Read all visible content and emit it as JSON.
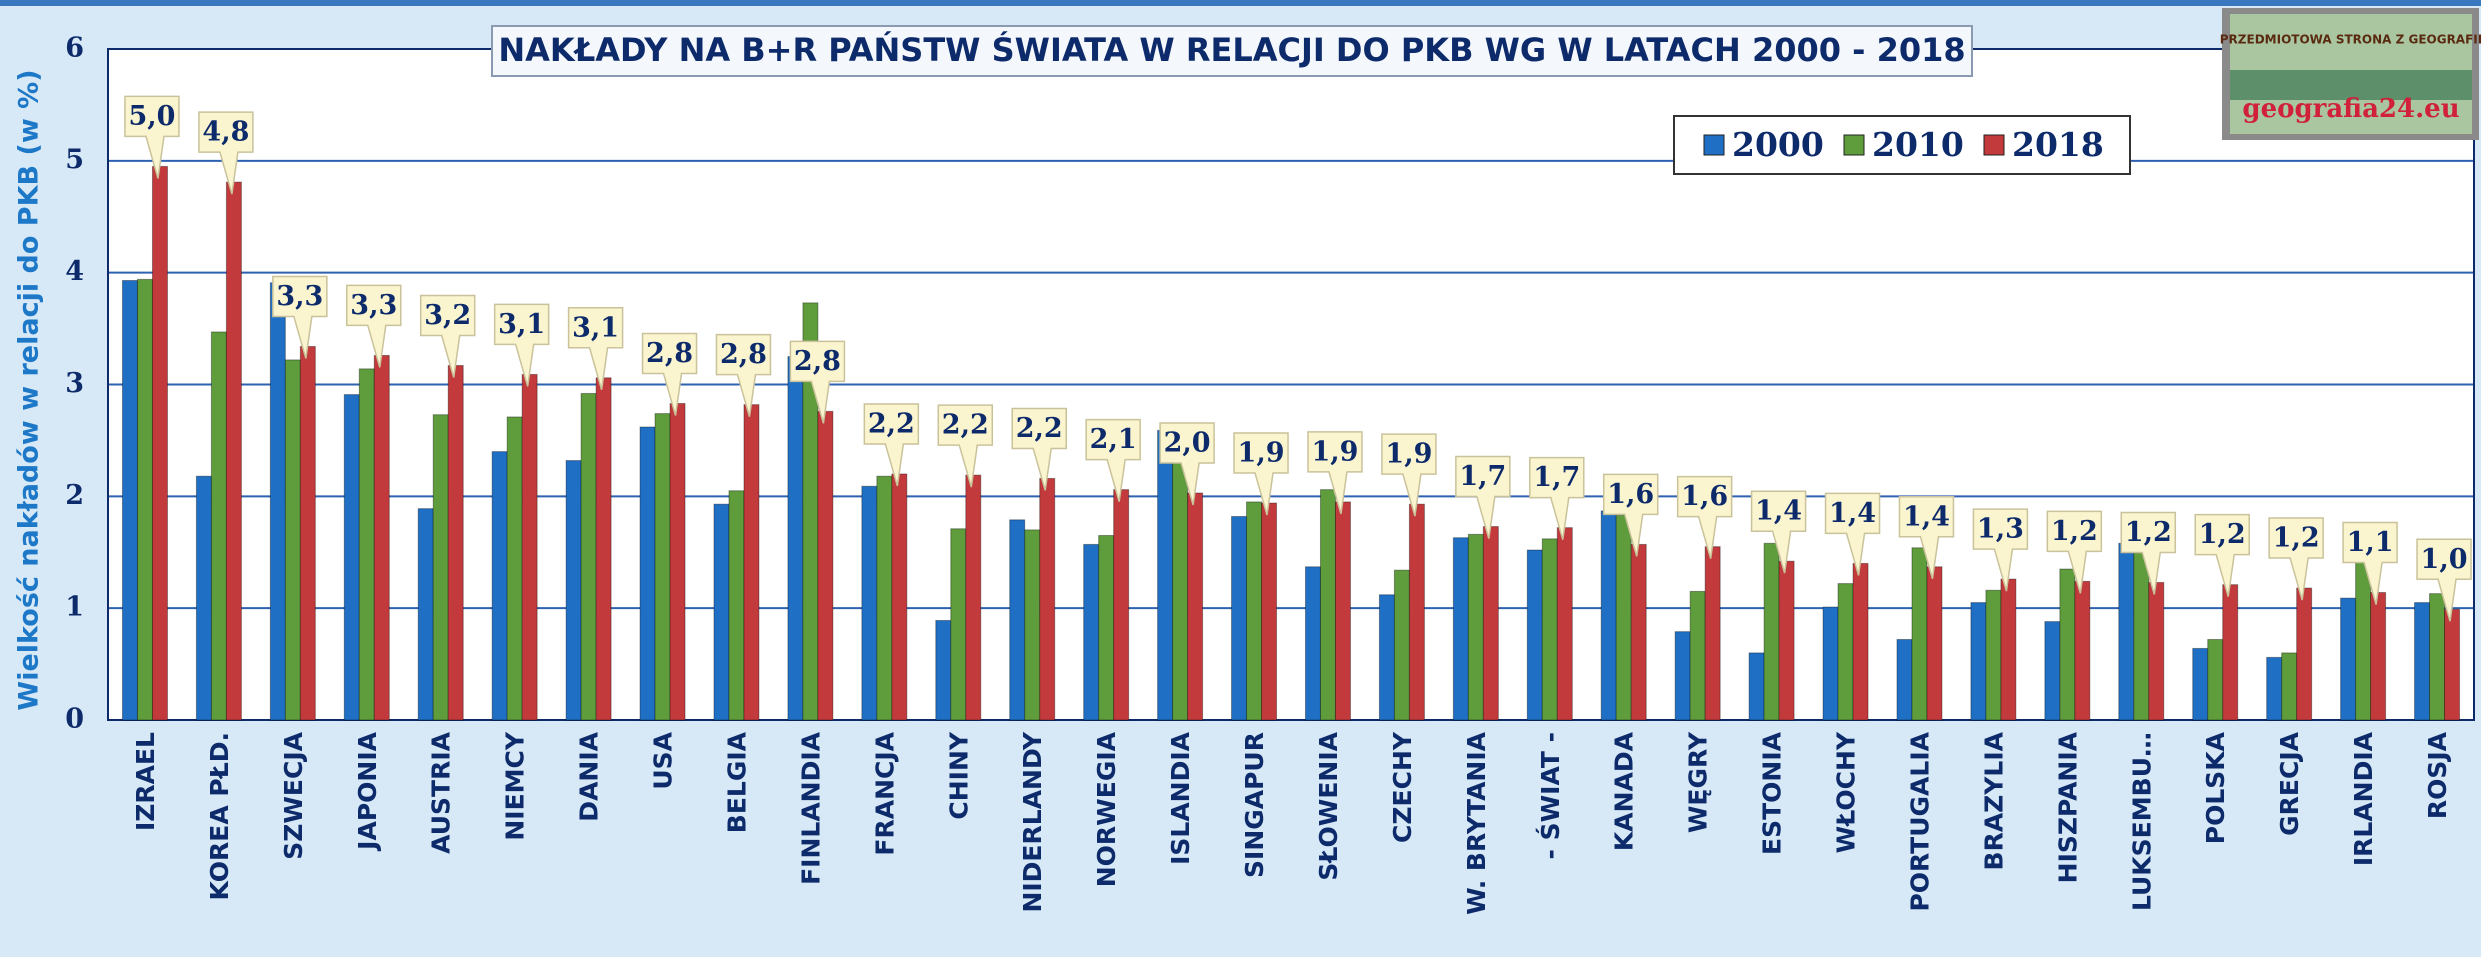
{
  "chart_data": {
    "type": "bar",
    "title": "NAKŁADY NA B+R PAŃSTW ŚWIATA W RELACJI DO PKB WG W LATACH 2000 - 2018",
    "y_label": "Wielkość nakładów w relacji do PKB (w %)",
    "categories": [
      "IZRAEL",
      "KOREA PŁD.",
      "SZWECJA",
      "JAPONIA",
      "AUSTRIA",
      "NIEMCY",
      "DANIA",
      "USA",
      "BELGIA",
      "FINLANDIA",
      "FRANCJA",
      "CHINY",
      "NIDERLANDY",
      "NORWEGIA",
      "ISLANDIA",
      "SINGAPUR",
      "SŁOWENIA",
      "CZECHY",
      "W. BRYTANIA",
      "- ŚWIAT -",
      "KANADA",
      "WĘGRY",
      "ESTONIA",
      "WŁOCHY",
      "PORTUGALIA",
      "BRAZYLIA",
      "HISZPANIA",
      "LUKSEMBU…",
      "POLSKA",
      "GRECJA",
      "IRLANDIA",
      "ROSJA"
    ],
    "series": [
      {
        "name": "2000",
        "color": "#1f6fc4",
        "values": [
          3.93,
          2.18,
          3.91,
          2.91,
          1.89,
          2.4,
          2.32,
          2.62,
          1.93,
          3.25,
          2.09,
          0.89,
          1.79,
          1.57,
          2.59,
          1.82,
          1.37,
          1.12,
          1.63,
          1.52,
          1.87,
          0.79,
          0.6,
          1.01,
          0.72,
          1.05,
          0.88,
          1.58,
          0.64,
          0.56,
          1.09,
          1.05
        ]
      },
      {
        "name": "2010",
        "color": "#5e9c3c",
        "values": [
          3.94,
          3.47,
          3.22,
          3.14,
          2.73,
          2.71,
          2.92,
          2.74,
          2.05,
          3.73,
          2.18,
          1.71,
          1.7,
          1.65,
          2.5,
          1.95,
          2.06,
          1.34,
          1.66,
          1.62,
          1.83,
          1.15,
          1.58,
          1.22,
          1.54,
          1.16,
          1.35,
          1.5,
          0.72,
          0.6,
          1.6,
          1.13
        ]
      },
      {
        "name": "2018",
        "color": "#c23a3c",
        "values": [
          4.95,
          4.81,
          3.34,
          3.26,
          3.17,
          3.09,
          3.06,
          2.83,
          2.82,
          2.76,
          2.2,
          2.19,
          2.16,
          2.06,
          2.03,
          1.94,
          1.95,
          1.93,
          1.73,
          1.72,
          1.57,
          1.55,
          1.42,
          1.4,
          1.37,
          1.26,
          1.24,
          1.23,
          1.21,
          1.18,
          1.14,
          0.99
        ],
        "value_labels": [
          "5,0",
          "4,8",
          "3,3",
          "3,3",
          "3,2",
          "3,1",
          "3,1",
          "2,8",
          "2,8",
          "2,8",
          "2,2",
          "2,2",
          "2,2",
          "2,1",
          "2,0",
          "1,9",
          "1,9",
          "1,9",
          "1,7",
          "1,7",
          "1,6",
          "1,6",
          "1,4",
          "1,4",
          "1,4",
          "1,3",
          "1,2",
          "1,2",
          "1,2",
          "1,2",
          "1,1",
          "1,0"
        ]
      }
    ],
    "ylim": [
      0,
      6
    ],
    "yticks": [
      0,
      1,
      2,
      3,
      4,
      5,
      6
    ],
    "grid": true,
    "legend": "upper right"
  },
  "logo": {
    "top": "PRZEDMIOTOWA STRONA Z GEOGRAFII",
    "bottom": "geografia24.eu"
  }
}
